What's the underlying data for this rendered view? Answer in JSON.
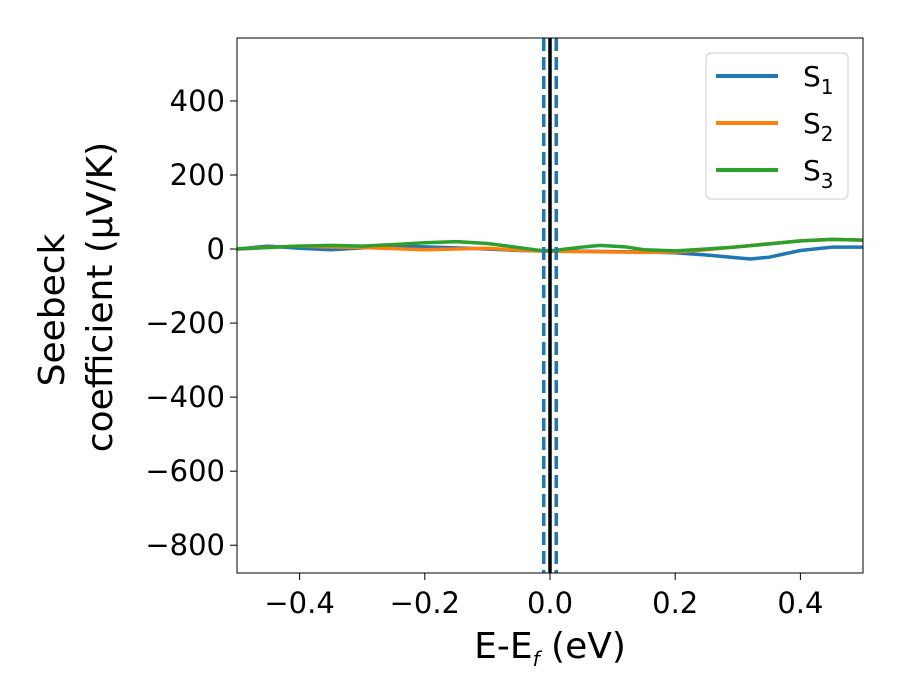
{
  "chart_data": {
    "type": "line",
    "title": "",
    "xlabel": "E-E",
    "xlabel_sub": "f",
    "xlabel_unit": " (eV)",
    "ylabel_line1": "Seebeck",
    "ylabel_line2": "coefficient  (μV/K)",
    "xlim": [
      -0.5,
      0.5
    ],
    "ylim": [
      -875,
      570
    ],
    "x_ticks": [
      -0.4,
      -0.2,
      0.0,
      0.2,
      0.4
    ],
    "x_tick_labels": [
      "−0.4",
      "−0.2",
      "0.0",
      "0.2",
      "0.4"
    ],
    "y_ticks": [
      400,
      200,
      0,
      -200,
      -400,
      -600,
      -800
    ],
    "y_tick_labels": [
      "400",
      "200",
      "0",
      "−200",
      "−400",
      "−600",
      "−800"
    ],
    "grid": false,
    "legend_position": "top-right",
    "series": [
      {
        "name": "S",
        "sub": "1",
        "color": "#1f77b4",
        "x": [
          -0.5,
          -0.45,
          -0.4,
          -0.35,
          -0.3,
          -0.25,
          -0.2,
          -0.15,
          -0.1,
          -0.05,
          -0.02,
          0.0,
          0.05,
          0.1,
          0.15,
          0.2,
          0.25,
          0.3,
          0.32,
          0.35,
          0.4,
          0.45,
          0.5
        ],
        "y": [
          0,
          8,
          2,
          -2,
          3,
          8,
          6,
          3,
          0,
          -4,
          -5,
          -5,
          -6,
          -7,
          -8,
          -10,
          -16,
          -24,
          -27,
          -22,
          -4,
          5,
          5
        ]
      },
      {
        "name": "S",
        "sub": "2",
        "color": "#ff7f0e",
        "x": [
          -0.5,
          -0.45,
          -0.4,
          -0.35,
          -0.3,
          -0.25,
          -0.2,
          -0.15,
          -0.1,
          -0.05,
          -0.02,
          0.0,
          0.05,
          0.1,
          0.15,
          0.2,
          0.25,
          0.3,
          0.35,
          0.4,
          0.45,
          0.5
        ],
        "y": [
          0,
          5,
          8,
          6,
          4,
          1,
          -2,
          0,
          2,
          -3,
          -5,
          -6,
          -7,
          -8,
          -9,
          -8,
          -2,
          6,
          14,
          22,
          26,
          24
        ]
      },
      {
        "name": "S",
        "sub": "3",
        "color": "#2ca02c",
        "x": [
          -0.5,
          -0.45,
          -0.4,
          -0.35,
          -0.3,
          -0.25,
          -0.2,
          -0.15,
          -0.1,
          -0.05,
          -0.02,
          0.0,
          0.05,
          0.08,
          0.12,
          0.15,
          0.2,
          0.25,
          0.3,
          0.35,
          0.4,
          0.45,
          0.5
        ],
        "y": [
          0,
          4,
          8,
          10,
          8,
          12,
          17,
          20,
          15,
          4,
          -3,
          -5,
          5,
          10,
          6,
          -2,
          -5,
          0,
          6,
          14,
          22,
          26,
          24
        ]
      }
    ],
    "vlines": [
      {
        "x": -0.01,
        "style": "dashed",
        "color": "#1f77b4"
      },
      {
        "x": 0.01,
        "style": "dashed",
        "color": "#1f77b4"
      },
      {
        "x": 0.0,
        "style": "solid",
        "color": "#000000"
      }
    ]
  }
}
